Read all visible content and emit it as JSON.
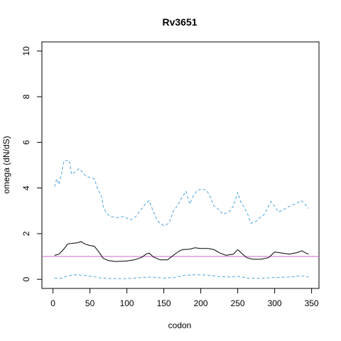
{
  "chart_data": {
    "type": "line",
    "title": "Rv3651",
    "xlabel": "codon",
    "ylabel": "omega (dN/dS)",
    "xlim": [
      -15,
      360
    ],
    "ylim": [
      -0.4,
      10.4
    ],
    "x_ticks": [
      0,
      50,
      100,
      150,
      200,
      250,
      300,
      350
    ],
    "y_ticks": [
      0,
      2,
      4,
      6,
      8,
      10
    ],
    "grid": false,
    "reference_line": {
      "y": 1,
      "color": "#cc66cc"
    },
    "series": [
      {
        "color": "#000000",
        "style": "solid",
        "points": [
          [
            2,
            1.05
          ],
          [
            8,
            1.1
          ],
          [
            14,
            1.3
          ],
          [
            20,
            1.55
          ],
          [
            27,
            1.58
          ],
          [
            33,
            1.6
          ],
          [
            38,
            1.65
          ],
          [
            43,
            1.55
          ],
          [
            50,
            1.48
          ],
          [
            56,
            1.45
          ],
          [
            62,
            1.2
          ],
          [
            68,
            0.92
          ],
          [
            75,
            0.82
          ],
          [
            85,
            0.78
          ],
          [
            100,
            0.8
          ],
          [
            110,
            0.85
          ],
          [
            120,
            0.96
          ],
          [
            126,
            1.1
          ],
          [
            130,
            1.15
          ],
          [
            136,
            0.98
          ],
          [
            145,
            0.85
          ],
          [
            155,
            0.85
          ],
          [
            163,
            1.05
          ],
          [
            170,
            1.22
          ],
          [
            175,
            1.3
          ],
          [
            185,
            1.32
          ],
          [
            192,
            1.38
          ],
          [
            200,
            1.35
          ],
          [
            210,
            1.35
          ],
          [
            218,
            1.3
          ],
          [
            226,
            1.15
          ],
          [
            234,
            1.05
          ],
          [
            244,
            1.1
          ],
          [
            250,
            1.3
          ],
          [
            255,
            1.15
          ],
          [
            262,
            0.95
          ],
          [
            270,
            0.88
          ],
          [
            282,
            0.88
          ],
          [
            292,
            0.95
          ],
          [
            300,
            1.2
          ],
          [
            310,
            1.15
          ],
          [
            320,
            1.1
          ],
          [
            330,
            1.17
          ],
          [
            337,
            1.25
          ],
          [
            342,
            1.15
          ],
          [
            346,
            1.1
          ]
        ]
      },
      {
        "color": "#4aa3df",
        "style": "dashed",
        "points": [
          [
            2,
            4.05
          ],
          [
            5,
            4.4
          ],
          [
            8,
            4.15
          ],
          [
            12,
            4.7
          ],
          [
            15,
            5.2
          ],
          [
            22,
            5.2
          ],
          [
            25,
            4.6
          ],
          [
            30,
            4.7
          ],
          [
            35,
            4.85
          ],
          [
            40,
            4.7
          ],
          [
            45,
            4.5
          ],
          [
            52,
            4.45
          ],
          [
            56,
            4.4
          ],
          [
            60,
            4.0
          ],
          [
            63,
            3.8
          ],
          [
            66,
            3.6
          ],
          [
            68,
            3.2
          ],
          [
            72,
            2.9
          ],
          [
            78,
            2.75
          ],
          [
            88,
            2.7
          ],
          [
            95,
            2.75
          ],
          [
            105,
            2.6
          ],
          [
            112,
            2.75
          ],
          [
            118,
            3.0
          ],
          [
            125,
            3.3
          ],
          [
            130,
            3.45
          ],
          [
            133,
            3.2
          ],
          [
            138,
            2.8
          ],
          [
            143,
            2.5
          ],
          [
            150,
            2.35
          ],
          [
            157,
            2.45
          ],
          [
            163,
            3.0
          ],
          [
            168,
            3.2
          ],
          [
            175,
            3.6
          ],
          [
            180,
            3.85
          ],
          [
            185,
            3.3
          ],
          [
            190,
            3.65
          ],
          [
            195,
            3.9
          ],
          [
            202,
            3.95
          ],
          [
            208,
            3.9
          ],
          [
            213,
            3.6
          ],
          [
            218,
            3.2
          ],
          [
            223,
            3.1
          ],
          [
            230,
            2.85
          ],
          [
            238,
            2.95
          ],
          [
            244,
            3.2
          ],
          [
            250,
            3.8
          ],
          [
            254,
            3.4
          ],
          [
            258,
            3.2
          ],
          [
            263,
            2.9
          ],
          [
            268,
            2.45
          ],
          [
            275,
            2.55
          ],
          [
            280,
            2.7
          ],
          [
            285,
            2.8
          ],
          [
            290,
            3.1
          ],
          [
            295,
            3.4
          ],
          [
            300,
            3.2
          ],
          [
            305,
            2.95
          ],
          [
            312,
            3.05
          ],
          [
            320,
            3.2
          ],
          [
            328,
            3.3
          ],
          [
            336,
            3.45
          ],
          [
            342,
            3.25
          ],
          [
            346,
            3.1
          ]
        ]
      },
      {
        "color": "#4aa3df",
        "style": "dashed",
        "points": [
          [
            2,
            0.05
          ],
          [
            12,
            0.05
          ],
          [
            20,
            0.15
          ],
          [
            30,
            0.2
          ],
          [
            40,
            0.18
          ],
          [
            55,
            0.12
          ],
          [
            65,
            0.05
          ],
          [
            80,
            0.03
          ],
          [
            100,
            0.03
          ],
          [
            120,
            0.08
          ],
          [
            135,
            0.1
          ],
          [
            150,
            0.05
          ],
          [
            165,
            0.08
          ],
          [
            178,
            0.18
          ],
          [
            195,
            0.2
          ],
          [
            210,
            0.18
          ],
          [
            225,
            0.12
          ],
          [
            240,
            0.1
          ],
          [
            252,
            0.13
          ],
          [
            262,
            0.05
          ],
          [
            280,
            0.04
          ],
          [
            300,
            0.08
          ],
          [
            320,
            0.1
          ],
          [
            335,
            0.15
          ],
          [
            346,
            0.1
          ]
        ]
      }
    ]
  }
}
